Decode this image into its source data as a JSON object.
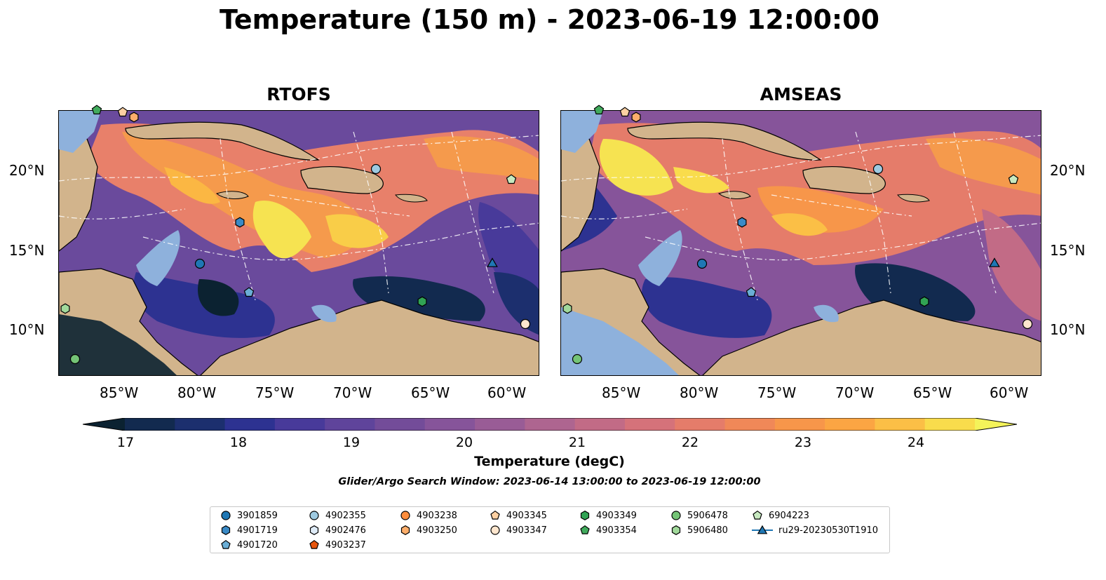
{
  "title": "Temperature (150 m) - 2023-06-19 12:00:00",
  "panels": [
    {
      "title": "RTOFS"
    },
    {
      "title": "AMSEAS"
    }
  ],
  "axes": {
    "lat_labels": [
      "20°N",
      "15°N",
      "10°N"
    ],
    "lon_labels": [
      "85°W",
      "80°W",
      "75°W",
      "70°W",
      "65°W",
      "60°W"
    ]
  },
  "colorbar": {
    "ticks": [
      "17",
      "18",
      "19",
      "20",
      "21",
      "22",
      "23",
      "24"
    ],
    "label": "Temperature (degC)",
    "colors": [
      "#0b2231",
      "#122a4f",
      "#1c2f6e",
      "#2d3291",
      "#483a9a",
      "#5f449b",
      "#734c99",
      "#86549a",
      "#995c96",
      "#ae6590",
      "#c26b86",
      "#d5727a",
      "#e57c6a",
      "#f08858",
      "#f7964a",
      "#fba543",
      "#fbbf46",
      "#f9dc4c",
      "#f4f35a"
    ]
  },
  "search_window": "Glider/Argo Search Window: 2023-06-14 13:00:00 to 2023-06-19 12:00:00",
  "legend": [
    {
      "label": "3901859",
      "marker": "circle",
      "color": "#1f77b4"
    },
    {
      "label": "4901719",
      "marker": "hexagon",
      "color": "#3a8ac6"
    },
    {
      "label": "4901720",
      "marker": "pentagon",
      "color": "#6aaed6"
    },
    {
      "label": "4902355",
      "marker": "circle",
      "color": "#9ecae1"
    },
    {
      "label": "4902476",
      "marker": "hexagon",
      "color": "#deebf7"
    },
    {
      "label": "4903237",
      "marker": "pentagon",
      "color": "#e6550d"
    },
    {
      "label": "4903238",
      "marker": "circle",
      "color": "#fd8d3c"
    },
    {
      "label": "4903250",
      "marker": "hexagon",
      "color": "#fdae6b"
    },
    {
      "label": "4903345",
      "marker": "pentagon",
      "color": "#fdd0a2"
    },
    {
      "label": "4903347",
      "marker": "circle",
      "color": "#fee6ce"
    },
    {
      "label": "4903349",
      "marker": "hexagon",
      "color": "#31a354"
    },
    {
      "label": "4903354",
      "marker": "pentagon",
      "color": "#41ab5d"
    },
    {
      "label": "5906478",
      "marker": "circle",
      "color": "#74c476"
    },
    {
      "label": "5906480",
      "marker": "hexagon",
      "color": "#a1d99b"
    },
    {
      "label": "6904223",
      "marker": "pentagon",
      "color": "#c7e9c0"
    },
    {
      "label": "ru29-20230530T1910",
      "marker": "triangle-line",
      "color": "#1f77b4"
    }
  ]
}
